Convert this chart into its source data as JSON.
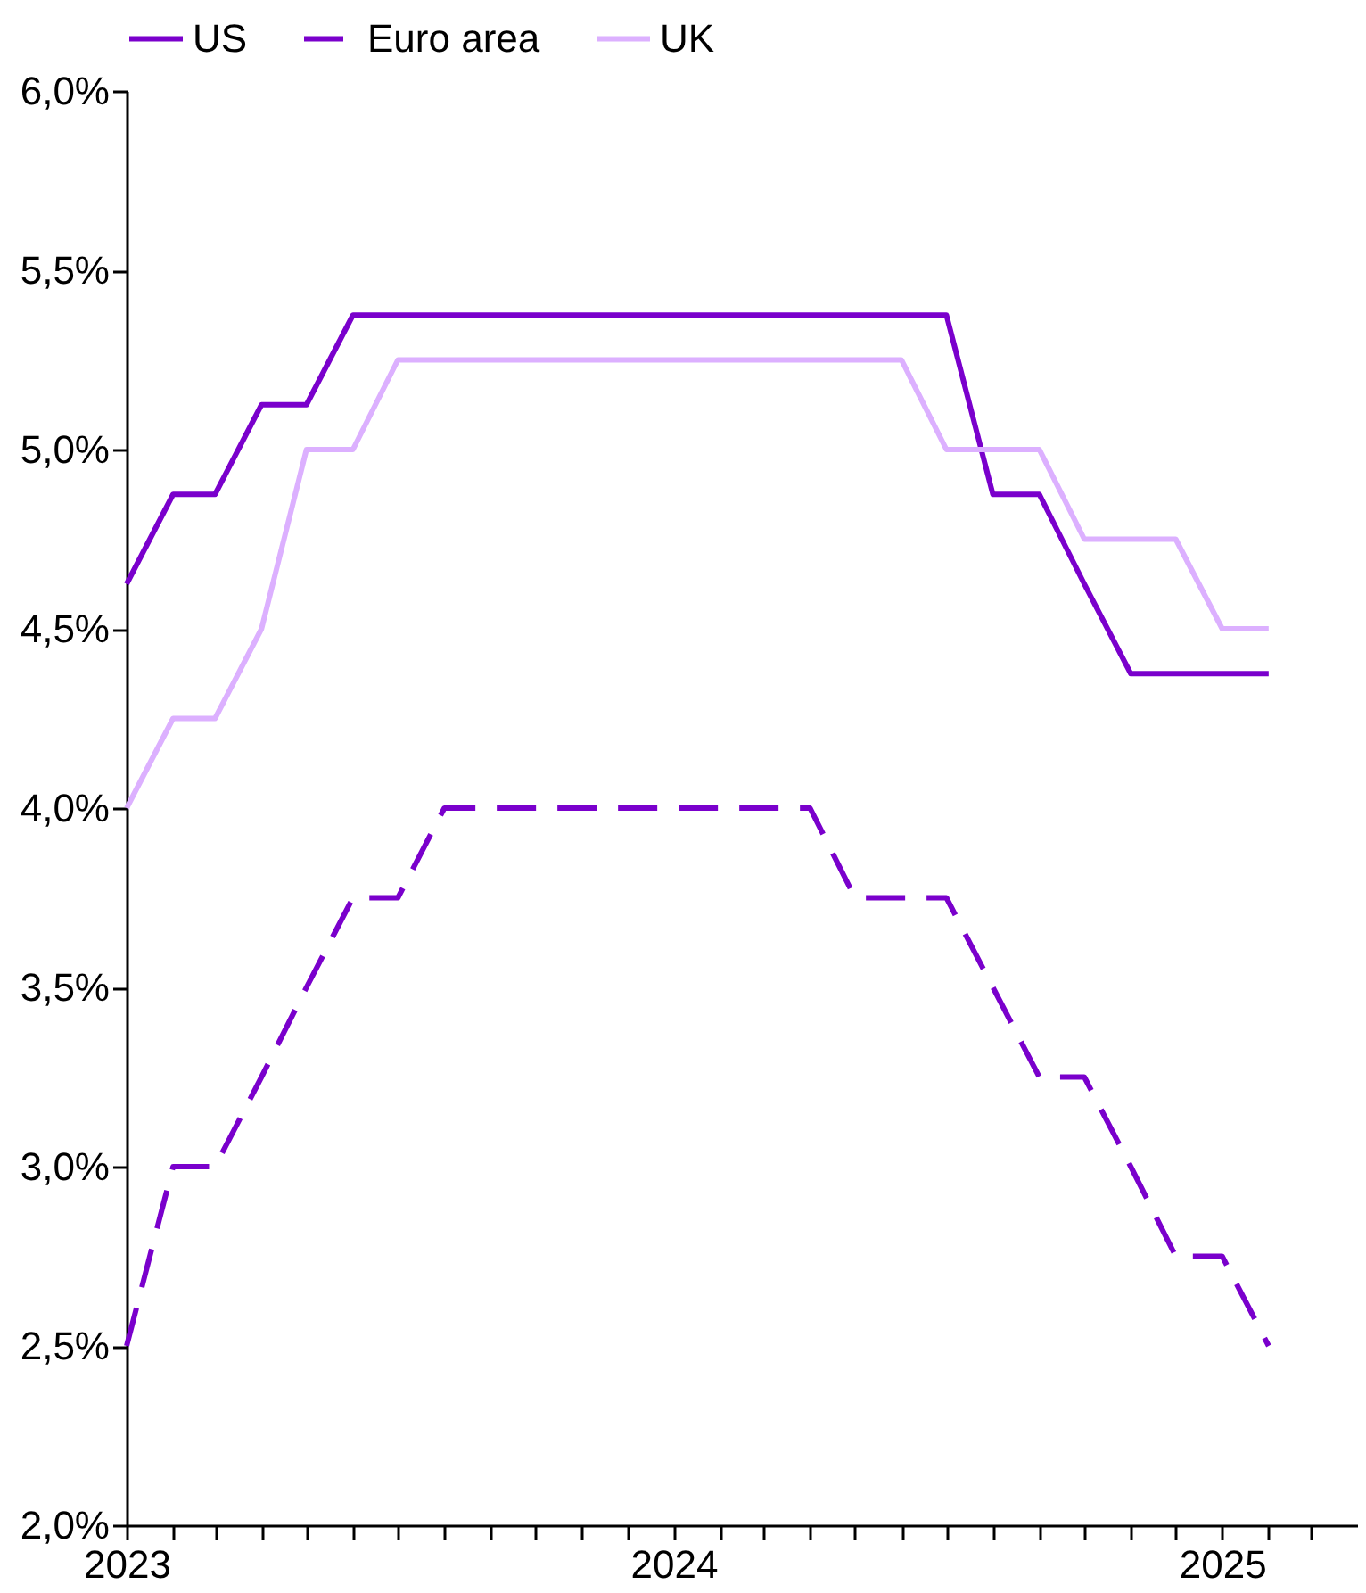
{
  "chart_data": {
    "type": "line",
    "x": [
      "2023-01",
      "2023-02",
      "2023-03",
      "2023-04",
      "2023-05",
      "2023-06",
      "2023-07",
      "2023-08",
      "2023-09",
      "2023-10",
      "2023-11",
      "2023-12",
      "2024-01",
      "2024-02",
      "2024-03",
      "2024-04",
      "2024-05",
      "2024-06",
      "2024-07",
      "2024-08",
      "2024-09",
      "2024-10",
      "2024-11",
      "2024-12",
      "2025-01",
      "2025-02"
    ],
    "series": [
      {
        "name": "US",
        "color": "#7a00cc",
        "line_style": "solid",
        "values": [
          4.625,
          4.875,
          4.875,
          5.125,
          5.125,
          5.375,
          5.375,
          5.375,
          5.375,
          5.375,
          5.375,
          5.375,
          5.375,
          5.375,
          5.375,
          5.375,
          5.375,
          5.375,
          5.375,
          4.875,
          4.875,
          4.625,
          4.375,
          4.375,
          4.375,
          4.375
        ]
      },
      {
        "name": "Euro area",
        "color": "#7a00cc",
        "line_style": "dashed",
        "values": [
          2.5,
          3.0,
          3.0,
          3.25,
          3.5,
          3.75,
          3.75,
          4.0,
          4.0,
          4.0,
          4.0,
          4.0,
          4.0,
          4.0,
          4.0,
          4.0,
          3.75,
          3.75,
          3.75,
          3.5,
          3.25,
          3.25,
          3.0,
          2.75,
          2.75,
          2.5
        ]
      },
      {
        "name": "UK",
        "color": "#dcb0ff",
        "line_style": "solid",
        "values": [
          4.0,
          4.25,
          4.25,
          4.5,
          5.0,
          5.0,
          5.25,
          5.25,
          5.25,
          5.25,
          5.25,
          5.25,
          5.25,
          5.25,
          5.25,
          5.25,
          5.25,
          5.25,
          5.0,
          5.0,
          5.0,
          4.75,
          4.75,
          4.75,
          4.5,
          4.5
        ]
      }
    ],
    "xlim": [
      "2023-01",
      "2025-04"
    ],
    "xticks": [
      {
        "value": "2023-01",
        "label": "2023"
      },
      {
        "value": "2023-02",
        "label": null
      },
      {
        "value": "2023-03",
        "label": null
      },
      {
        "value": "2023-04",
        "label": null
      },
      {
        "value": "2023-05",
        "label": null
      },
      {
        "value": "2023-06",
        "label": null
      },
      {
        "value": "2023-07",
        "label": null
      },
      {
        "value": "2023-08",
        "label": null
      },
      {
        "value": "2023-09",
        "label": null
      },
      {
        "value": "2023-10",
        "label": null
      },
      {
        "value": "2023-11",
        "label": null
      },
      {
        "value": "2023-12",
        "label": null
      },
      {
        "value": "2024-01",
        "label": "2024"
      },
      {
        "value": "2024-02",
        "label": null
      },
      {
        "value": "2024-03",
        "label": null
      },
      {
        "value": "2024-04",
        "label": null
      },
      {
        "value": "2024-05",
        "label": null
      },
      {
        "value": "2024-06",
        "label": null
      },
      {
        "value": "2024-07",
        "label": null
      },
      {
        "value": "2024-08",
        "label": null
      },
      {
        "value": "2024-09",
        "label": null
      },
      {
        "value": "2024-10",
        "label": null
      },
      {
        "value": "2024-11",
        "label": null
      },
      {
        "value": "2024-12",
        "label": null
      },
      {
        "value": "2025-01",
        "label": "2025"
      },
      {
        "value": "2025-02",
        "label": null
      },
      {
        "value": "2025-03",
        "label": null
      }
    ],
    "ylim": [
      2.0,
      6.0
    ],
    "yticks": [
      {
        "value": 2.0,
        "label": "2,0%"
      },
      {
        "value": 2.5,
        "label": "2,5%"
      },
      {
        "value": 3.0,
        "label": "3,0%"
      },
      {
        "value": 3.5,
        "label": "3,5%"
      },
      {
        "value": 4.0,
        "label": "4,0%"
      },
      {
        "value": 4.5,
        "label": "4,5%"
      },
      {
        "value": 5.0,
        "label": "5,0%"
      },
      {
        "value": 5.5,
        "label": "5,5%"
      },
      {
        "value": 6.0,
        "label": "6,0%"
      }
    ],
    "grid": false,
    "legend": "top"
  }
}
